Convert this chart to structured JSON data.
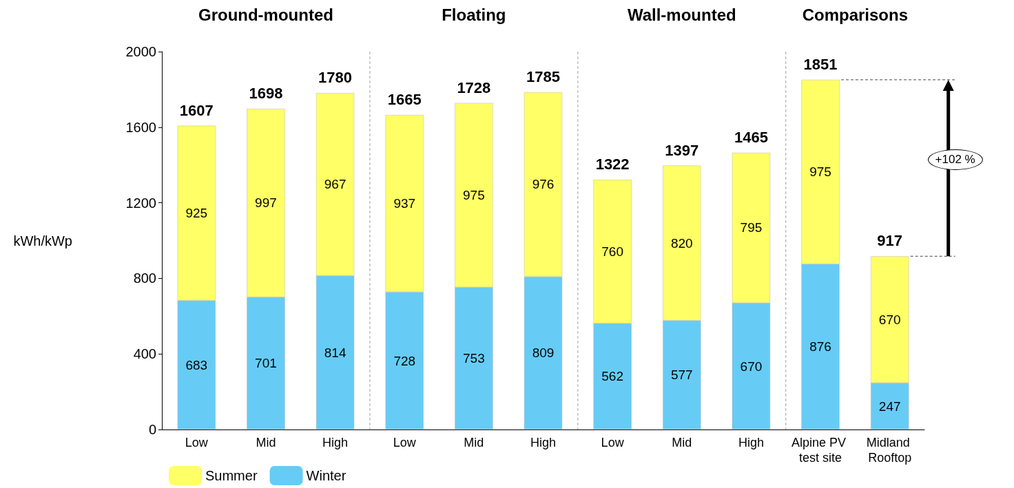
{
  "chart_data": {
    "type": "bar",
    "stacked": true,
    "ylabel": "kWh/kWp",
    "categories": [
      "Low",
      "Mid",
      "High",
      "Low",
      "Mid",
      "High",
      "Low",
      "Mid",
      "High",
      "Alpine PV test site",
      "Midland Rooftop"
    ],
    "series": [
      {
        "name": "Winter",
        "color": "#66ccf5",
        "values": [
          683,
          701,
          814,
          728,
          753,
          809,
          562,
          577,
          670,
          876,
          247
        ]
      },
      {
        "name": "Summer",
        "color": "#ffff66",
        "values": [
          925,
          997,
          967,
          937,
          975,
          976,
          760,
          820,
          795,
          975,
          670
        ]
      }
    ],
    "totals": [
      "1607",
      "1698",
      "1780",
      "1665",
      "1728",
      "1785",
      "1322",
      "1397",
      "1465",
      "1851",
      "917"
    ],
    "data_labels": true,
    "ylim": [
      0,
      2000
    ],
    "yticks": [
      0,
      400,
      800,
      1200,
      1600,
      2000
    ],
    "annotations": [
      "Ground-mounted",
      "Floating",
      "Wall-mounted",
      "Comparisons",
      "+102 %"
    ],
    "grid": false,
    "legend": "bottom left"
  }
}
